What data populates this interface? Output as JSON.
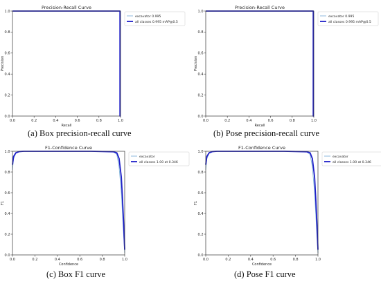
{
  "chart_data": [
    {
      "type": "line",
      "title": "Precision-Recall Curve",
      "xlabel": "Recall",
      "ylabel": "Precision",
      "xlim": [
        0,
        1
      ],
      "ylim": [
        0,
        1
      ],
      "xticks": [
        "0.0",
        "0.2",
        "0.4",
        "0.6",
        "0.8",
        "1.0"
      ],
      "yticks": [
        "0.0",
        "0.2",
        "0.4",
        "0.6",
        "0.8",
        "1.0"
      ],
      "legend_position": "top-right",
      "caption": "(a) Box precision-recall curve",
      "series": [
        {
          "name": "excavator 0.995",
          "color": "#7fb2d9",
          "x": [
            0,
            0.995,
            0.995,
            1.0
          ],
          "y": [
            1.0,
            1.0,
            0.0,
            0.0
          ]
        },
        {
          "name": "all classes 0.995 mAP@0.5",
          "color": "#1f1fc8",
          "x": [
            0,
            0.995,
            0.995,
            1.0
          ],
          "y": [
            1.0,
            1.0,
            0.0,
            0.0
          ]
        }
      ]
    },
    {
      "type": "line",
      "title": "Precision-Recall Curve",
      "xlabel": "Recall",
      "ylabel": "Precision",
      "xlim": [
        0,
        1
      ],
      "ylim": [
        0,
        1
      ],
      "xticks": [
        "0.0",
        "0.2",
        "0.4",
        "0.6",
        "0.8",
        "1.0"
      ],
      "yticks": [
        "0.0",
        "0.2",
        "0.4",
        "0.6",
        "0.8",
        "1.0"
      ],
      "legend_position": "top-right",
      "caption": "(b) Pose precision-recall curve",
      "series": [
        {
          "name": "excavator 0.995",
          "color": "#7fb2d9",
          "x": [
            0,
            0.995,
            0.995,
            1.0
          ],
          "y": [
            1.0,
            1.0,
            0.0,
            0.0
          ]
        },
        {
          "name": "all classes 0.995 mAP@0.5",
          "color": "#1f1fc8",
          "x": [
            0,
            0.995,
            0.995,
            1.0
          ],
          "y": [
            1.0,
            1.0,
            0.0,
            0.0
          ]
        }
      ]
    },
    {
      "type": "line",
      "title": "F1-Confidence Curve",
      "xlabel": "Confidence",
      "ylabel": "F1",
      "xlim": [
        0,
        1
      ],
      "ylim": [
        0,
        1
      ],
      "xticks": [
        "0.0",
        "0.2",
        "0.4",
        "0.6",
        "0.8",
        "1.0"
      ],
      "yticks": [
        "0.0",
        "0.2",
        "0.4",
        "0.6",
        "0.8",
        "1.0"
      ],
      "legend_position": "top-right",
      "caption": "(c) Box F1 curve",
      "series": [
        {
          "name": "excavator",
          "color": "#7fb2d9",
          "x": [
            0,
            0.01,
            0.03,
            0.06,
            0.1,
            0.3,
            0.5,
            0.7,
            0.9,
            0.93,
            0.95,
            0.97,
            0.98,
            0.99,
            1.0
          ],
          "y": [
            0.82,
            0.93,
            0.98,
            0.995,
            1.0,
            1.0,
            1.0,
            1.0,
            0.995,
            0.97,
            0.85,
            0.6,
            0.4,
            0.2,
            0.02
          ]
        },
        {
          "name": "all classes 1.00 at 0.346",
          "color": "#1f1fc8",
          "x": [
            0,
            0.01,
            0.03,
            0.06,
            0.1,
            0.3,
            0.5,
            0.7,
            0.9,
            0.93,
            0.95,
            0.97,
            0.98,
            0.99,
            1.0
          ],
          "y": [
            0.87,
            0.95,
            0.985,
            0.997,
            1.0,
            1.0,
            1.0,
            1.0,
            0.995,
            0.985,
            0.93,
            0.75,
            0.55,
            0.32,
            0.05
          ]
        }
      ]
    },
    {
      "type": "line",
      "title": "F1-Confidence Curve",
      "xlabel": "Confidence",
      "ylabel": "F1",
      "xlim": [
        0,
        1
      ],
      "ylim": [
        0,
        1
      ],
      "xticks": [
        "0.0",
        "0.2",
        "0.4",
        "0.6",
        "0.8",
        "1.0"
      ],
      "yticks": [
        "0.0",
        "0.2",
        "0.4",
        "0.6",
        "0.8",
        "1.0"
      ],
      "legend_position": "top-right",
      "caption": "(d) Pose F1 curve",
      "series": [
        {
          "name": "excavator",
          "color": "#7fb2d9",
          "x": [
            0,
            0.01,
            0.03,
            0.06,
            0.1,
            0.3,
            0.5,
            0.7,
            0.9,
            0.93,
            0.95,
            0.97,
            0.98,
            0.99,
            1.0
          ],
          "y": [
            0.82,
            0.93,
            0.98,
            0.995,
            1.0,
            1.0,
            1.0,
            1.0,
            0.995,
            0.97,
            0.85,
            0.6,
            0.4,
            0.2,
            0.02
          ]
        },
        {
          "name": "all classes 1.00 at 0.346",
          "color": "#1f1fc8",
          "x": [
            0,
            0.01,
            0.03,
            0.06,
            0.1,
            0.3,
            0.5,
            0.7,
            0.9,
            0.93,
            0.95,
            0.97,
            0.98,
            0.99,
            1.0
          ],
          "y": [
            0.87,
            0.95,
            0.985,
            0.997,
            1.0,
            1.0,
            1.0,
            1.0,
            0.995,
            0.985,
            0.93,
            0.75,
            0.55,
            0.32,
            0.05
          ]
        }
      ]
    }
  ]
}
